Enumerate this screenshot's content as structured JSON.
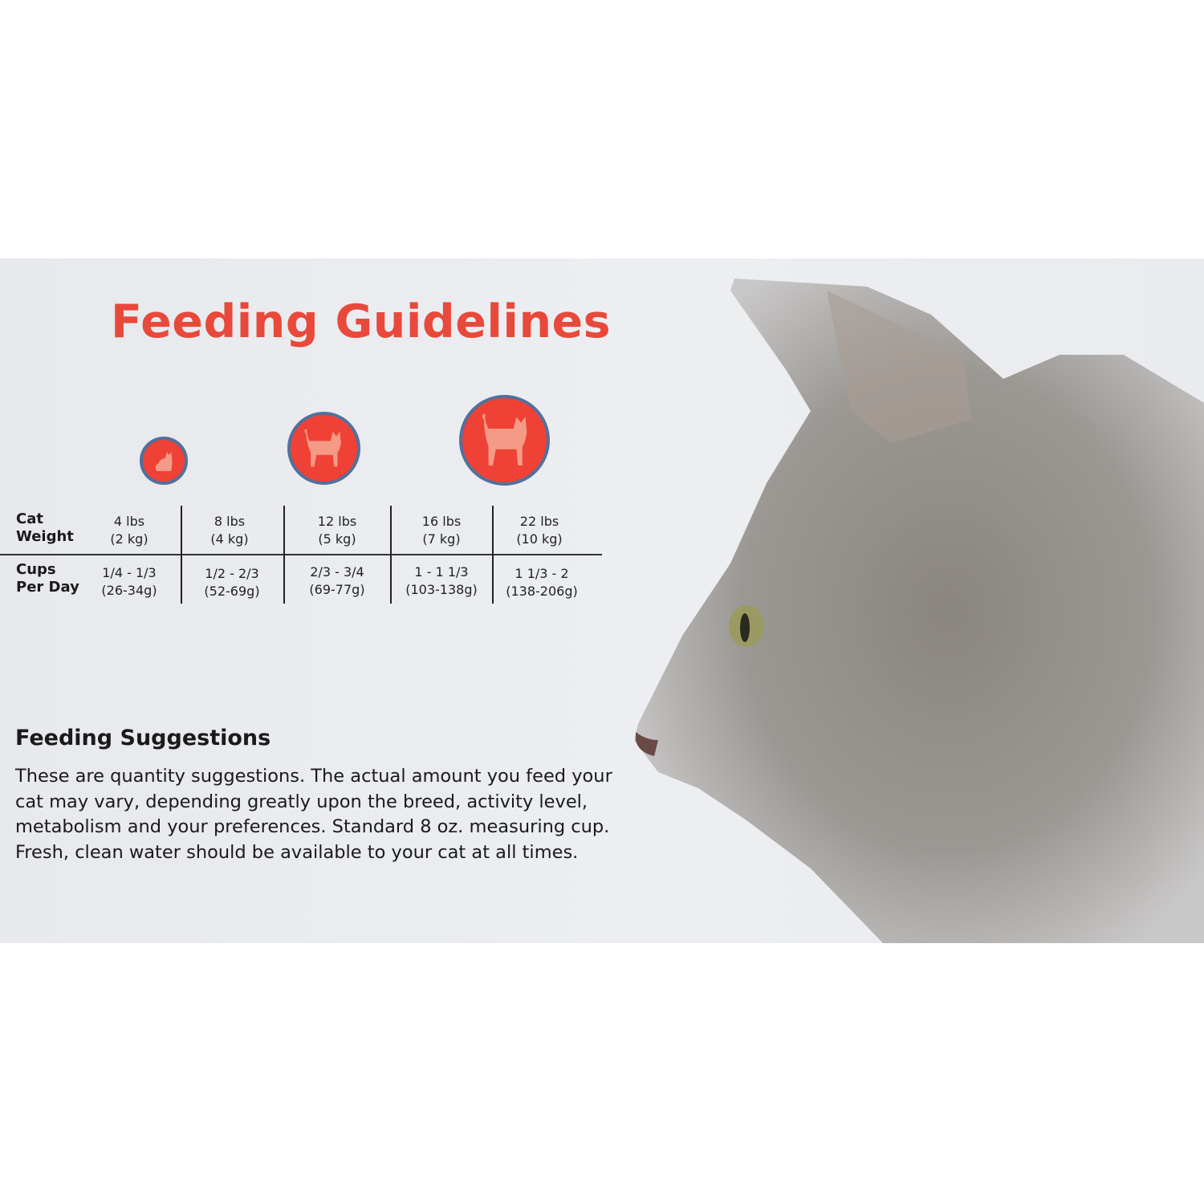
{
  "title": "Feeding Guidelines",
  "colors": {
    "title": "#e8493a",
    "circle_fill": "#ef4135",
    "circle_border": "#52709c",
    "silhouette": "#f49a86"
  },
  "icons": [
    "cat-small-icon",
    "cat-medium-icon",
    "cat-large-icon"
  ],
  "table": {
    "row_labels": {
      "weight": [
        "Cat",
        "Weight"
      ],
      "cups": [
        "Cups",
        "Per Day"
      ]
    },
    "columns": [
      {
        "weight": [
          "4 lbs",
          "(2 kg)"
        ],
        "cups": [
          "1/4 - 1/3",
          "(26-34g)"
        ]
      },
      {
        "weight": [
          "8 lbs",
          "(4 kg)"
        ],
        "cups": [
          "1/2 - 2/3",
          "(52-69g)"
        ]
      },
      {
        "weight": [
          "12 lbs",
          "(5 kg)"
        ],
        "cups": [
          "2/3 - 3/4",
          "(69-77g)"
        ]
      },
      {
        "weight": [
          "16 lbs",
          "(7 kg)"
        ],
        "cups": [
          "1 - 1 1/3",
          "(103-138g)"
        ]
      },
      {
        "weight": [
          "22 lbs",
          "(10 kg)"
        ],
        "cups": [
          "1 1/3 - 2",
          "(138-206g)"
        ]
      }
    ]
  },
  "suggestions": {
    "heading": "Feeding Suggestions",
    "text": "These are quantity suggestions. The actual amount you feed your cat may vary, depending greatly upon the breed, activity level, metabolism and your preferences. Standard 8 oz. measuring cup. Fresh, clean water should be available to your cat at all times."
  }
}
